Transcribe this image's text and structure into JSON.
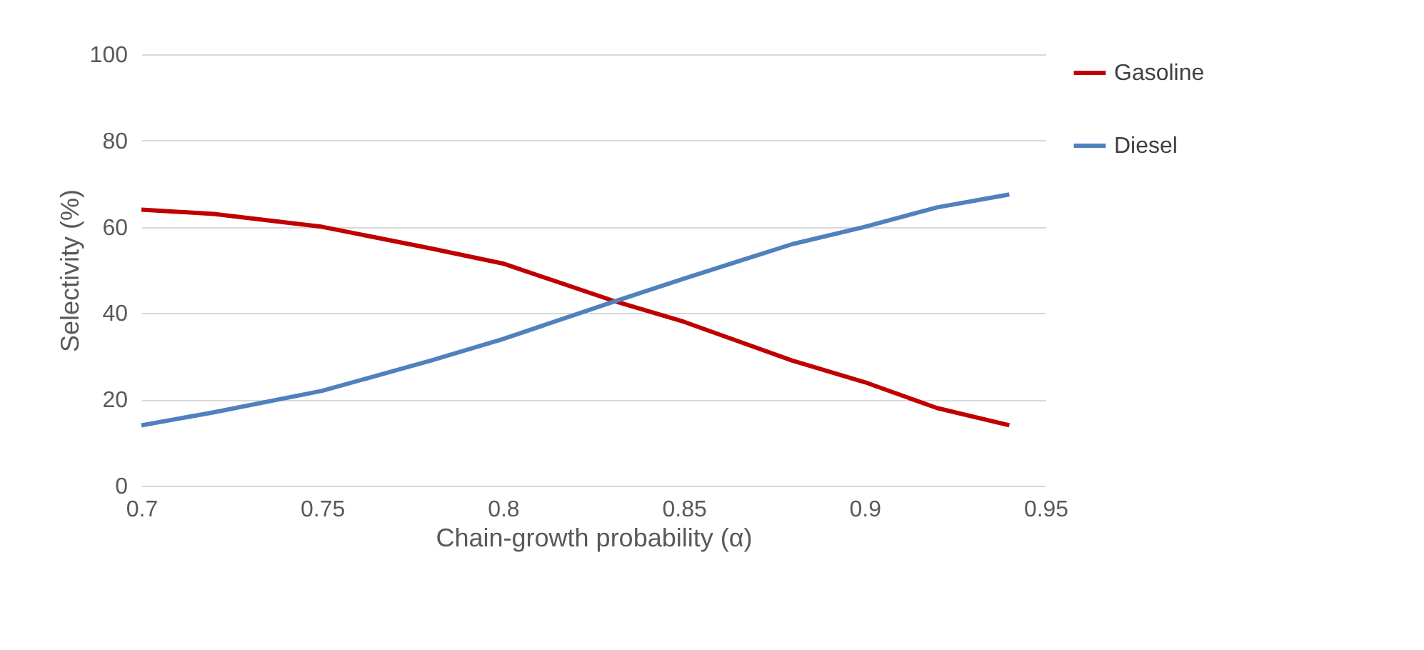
{
  "chart_data": {
    "type": "line",
    "xlabel": "Chain-growth probability (α)",
    "ylabel": "Selectivity (%)",
    "x": [
      0.7,
      0.72,
      0.75,
      0.78,
      0.8,
      0.83,
      0.85,
      0.88,
      0.9,
      0.92,
      0.94
    ],
    "series": [
      {
        "name": "Gasoline",
        "color": "#c00000",
        "values": [
          64,
          63,
          60,
          55,
          51.5,
          43,
          38,
          29,
          24,
          18,
          14
        ]
      },
      {
        "name": "Diesel",
        "color": "#4f81bd",
        "values": [
          14,
          17,
          22,
          29,
          34,
          42.5,
          48,
          56,
          60,
          64.5,
          67.5
        ]
      }
    ],
    "xlim": [
      0.7,
      0.95
    ],
    "xticks": [
      0.7,
      0.75,
      0.8,
      0.85,
      0.9,
      0.95
    ],
    "ylim": [
      0,
      100
    ],
    "yticks": [
      0,
      20,
      40,
      60,
      80,
      100
    ],
    "grid": "y",
    "legend": "right",
    "marker": "none",
    "line_style": "solid"
  }
}
